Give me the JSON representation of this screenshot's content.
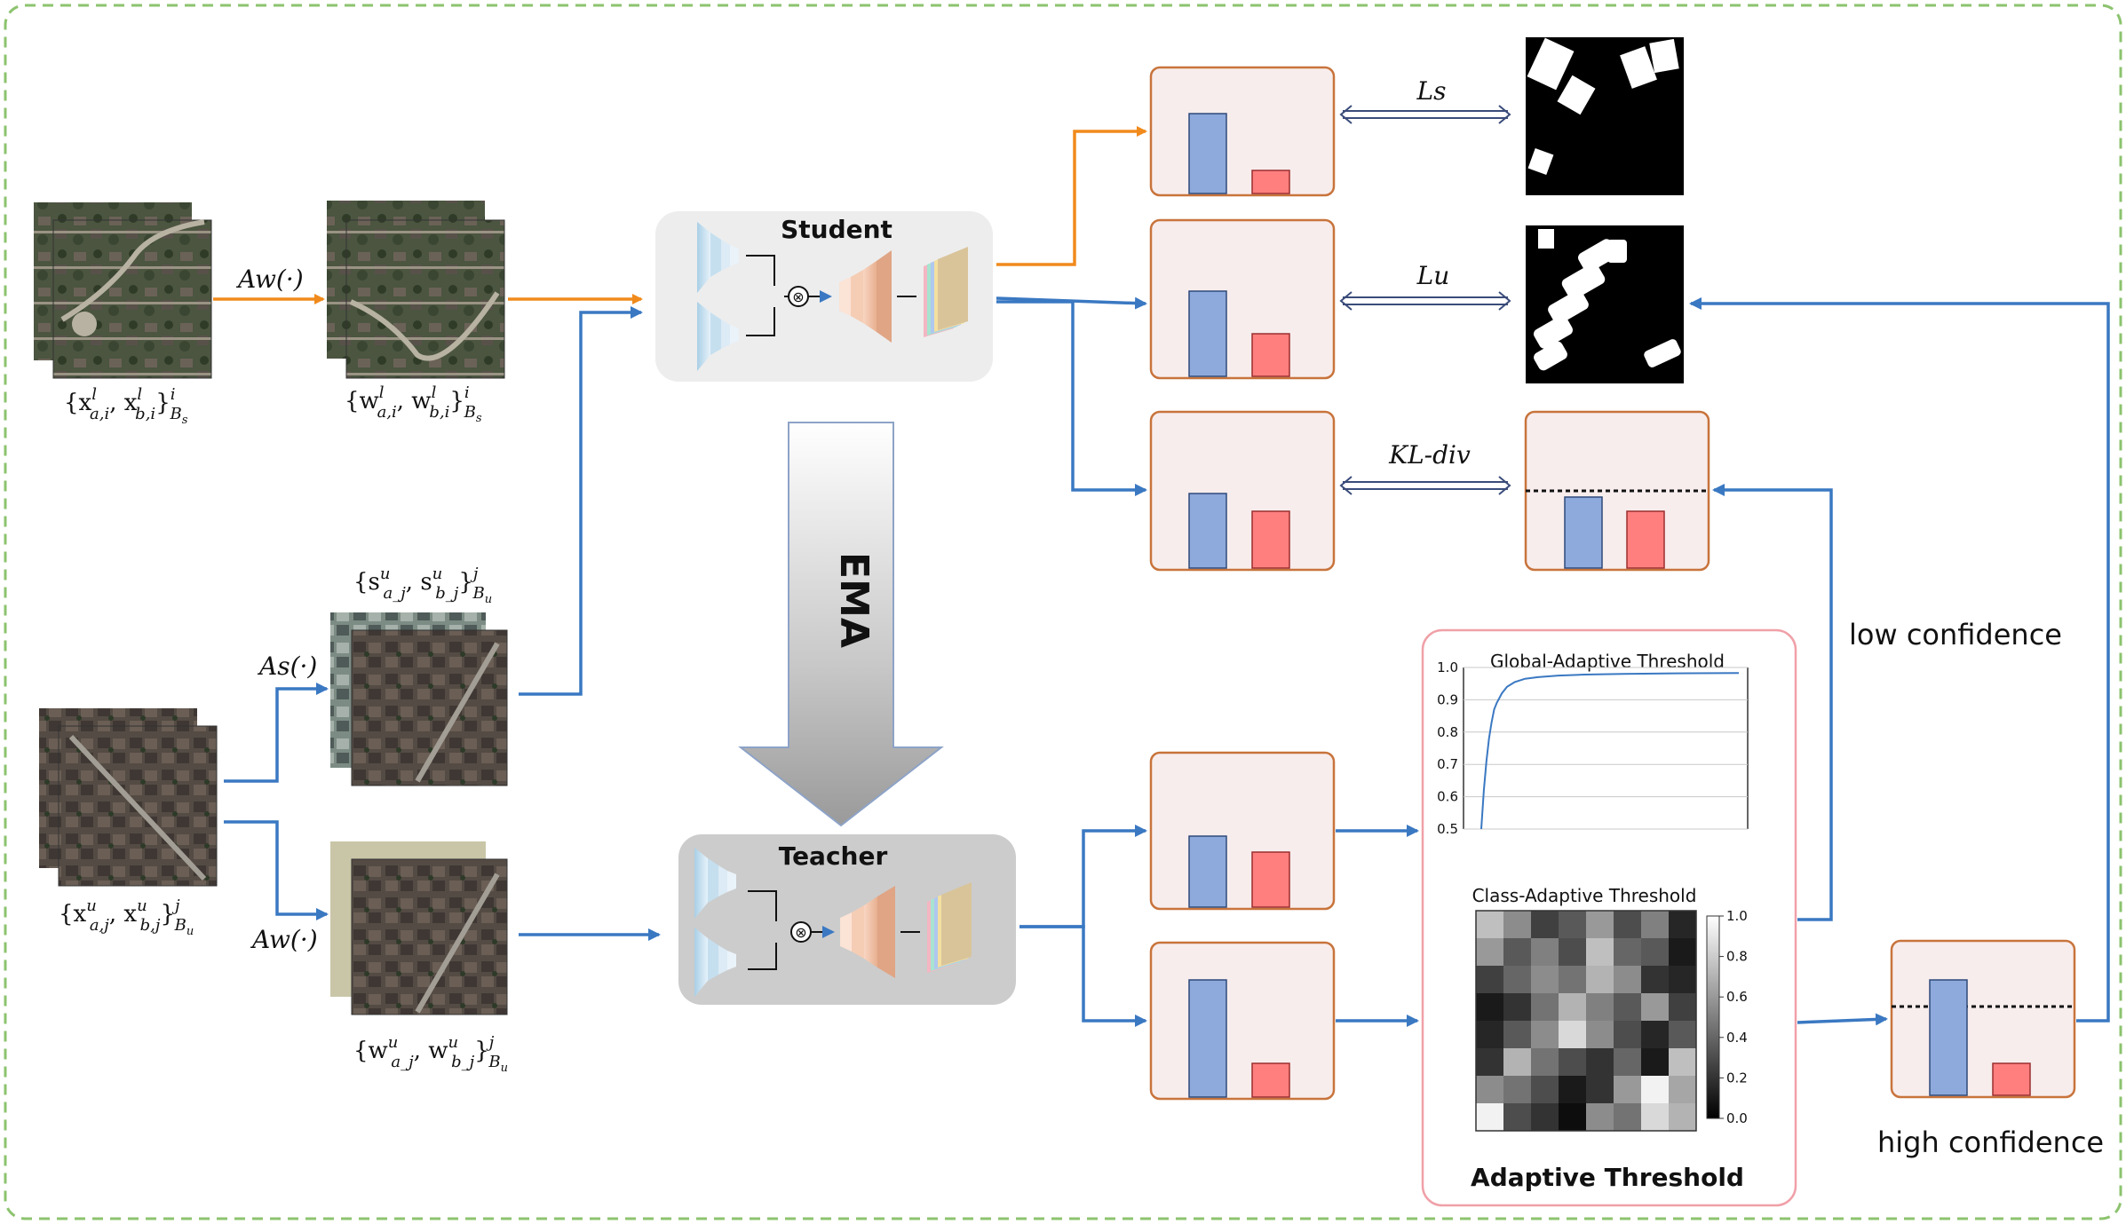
{
  "colors": {
    "labeled_arrow": "#F08A1C",
    "unlabeled_arrow": "#3A78C2",
    "box_fill": "#F8EDED",
    "box_stroke": "#C8743C",
    "bar_blue": "#8EA9DB",
    "bar_red": "#FF7F7F",
    "frame": "#8CC36E",
    "threshold_panel_stroke": "#F0A0A8"
  },
  "models": {
    "student_label": "Student",
    "teacher_label": "Teacher",
    "ema_label": "EMA"
  },
  "augment": {
    "weak_labeled": "Aw(·)",
    "strong_unlabeled": "As(·)",
    "weak_unlabeled": "Aw(·)"
  },
  "sets": {
    "labeled_input": {
      "base": "{x",
      "sup1": "l",
      "sub1": "a,i",
      "mid": ", x",
      "sup2": "l",
      "sub2": "b,i",
      "close": "}",
      "sup3": "i",
      "sub3": "B",
      "subsub": "s"
    },
    "labeled_weak": {
      "base": "{w",
      "sup1": "l",
      "sub1": "a,i",
      "mid": ", w",
      "sup2": "l",
      "sub2": "b,i",
      "close": "}",
      "sup3": "i",
      "sub3": "B",
      "subsub": "s"
    },
    "unlabeled_input": {
      "base": "{x",
      "sup1": "u",
      "sub1": "a,j",
      "mid": ", x",
      "sup2": "u",
      "sub2": "b,j",
      "close": "}",
      "sup3": "j",
      "sub3": "B",
      "subsub": "u"
    },
    "unlabeled_strong": {
      "base": "{s",
      "sup1": "u",
      "sub1": "a_j",
      "mid": ", s",
      "sup2": "u",
      "sub2": "b_j",
      "close": "}",
      "sup3": "j",
      "sub3": "B",
      "subsub": "u"
    },
    "unlabeled_weak": {
      "base": "{w",
      "sup1": "u",
      "sub1": "a_j",
      "mid": ", w",
      "sup2": "u",
      "sub2": "b_j",
      "close": "}",
      "sup3": "j",
      "sub3": "B",
      "subsub": "u"
    }
  },
  "losses": {
    "supervised": "Ls",
    "unsupervised": "Lu",
    "kl": "KL-div"
  },
  "threshold": {
    "panel_title": "Adaptive Threshold",
    "global_title": "Global-Adaptive Threshold",
    "class_title": "Class-Adaptive Threshold",
    "global_ticks": [
      "1.0",
      "0.9",
      "0.8",
      "0.7",
      "0.6",
      "0.5"
    ],
    "colorbar_ticks": [
      "1.0",
      "0.8",
      "0.6",
      "0.4",
      "0.2",
      "0.0"
    ],
    "low_confidence": "low confidence",
    "high_confidence": "high confidence"
  },
  "chart_data": [
    {
      "type": "line",
      "title": "Global-Adaptive Threshold",
      "ylim": [
        0.5,
        1.0
      ],
      "yticks": [
        0.5,
        0.6,
        0.7,
        0.8,
        0.9,
        1.0
      ],
      "grid": true,
      "x": [
        0,
        1,
        2,
        3,
        4,
        5,
        6,
        8,
        10,
        13,
        17,
        22,
        30,
        40,
        55,
        75,
        100
      ],
      "values": [
        0.5,
        0.62,
        0.71,
        0.78,
        0.83,
        0.87,
        0.89,
        0.92,
        0.94,
        0.955,
        0.965,
        0.97,
        0.975,
        0.978,
        0.98,
        0.982,
        0.983
      ]
    },
    {
      "type": "heatmap",
      "title": "Class-Adaptive Threshold",
      "colorbar_range": [
        0.0,
        1.0
      ],
      "matrix": [
        [
          0.75,
          0.55,
          0.25,
          0.35,
          0.6,
          0.3,
          0.5,
          0.15
        ],
        [
          0.6,
          0.35,
          0.5,
          0.3,
          0.75,
          0.4,
          0.35,
          0.1
        ],
        [
          0.25,
          0.4,
          0.55,
          0.45,
          0.7,
          0.55,
          0.2,
          0.15
        ],
        [
          0.1,
          0.2,
          0.45,
          0.7,
          0.5,
          0.35,
          0.6,
          0.25
        ],
        [
          0.15,
          0.35,
          0.55,
          0.85,
          0.55,
          0.3,
          0.15,
          0.35
        ],
        [
          0.2,
          0.7,
          0.45,
          0.3,
          0.2,
          0.4,
          0.1,
          0.75
        ],
        [
          0.55,
          0.45,
          0.3,
          0.1,
          0.2,
          0.6,
          0.95,
          0.65
        ],
        [
          0.95,
          0.3,
          0.2,
          0.05,
          0.55,
          0.45,
          0.85,
          0.7
        ]
      ]
    }
  ]
}
